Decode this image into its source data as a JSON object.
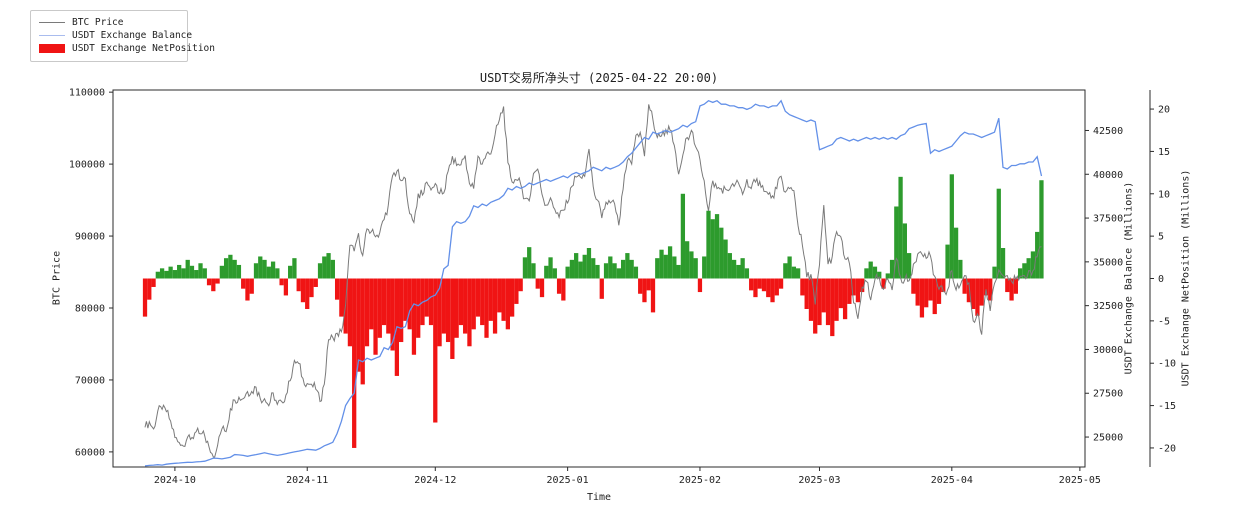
{
  "chart_data": {
    "type": "mixed",
    "title": "USDT交易所净头寸 (2025-04-22 20:00)",
    "colors": {
      "btc_line": "#7a7a7a",
      "balance_line": "#6390e8",
      "netpos_positive": "#2d9b2d",
      "netpos_negative": "#f01414",
      "legend_balance_marker": "#a9bcee",
      "spine": "#2b2b2b",
      "background": "#ffffff"
    },
    "legend": [
      {
        "label": "BTC Price",
        "type": "line",
        "color": "#7a7a7a"
      },
      {
        "label": "USDT Exchange Balance",
        "type": "line",
        "color": "#a9bcee"
      },
      {
        "label": "USDT Exchange NetPosition",
        "type": "patch",
        "color": "#f01414"
      }
    ],
    "axes": {
      "x": {
        "label": "Time",
        "domain_days": [
          -7.5,
          220.2
        ],
        "ticks": [
          {
            "day": 7,
            "label": "2024-10"
          },
          {
            "day": 38,
            "label": "2024-11"
          },
          {
            "day": 68,
            "label": "2024-12"
          },
          {
            "day": 99,
            "label": "2025-01"
          },
          {
            "day": 130,
            "label": "2025-02"
          },
          {
            "day": 158,
            "label": "2025-03"
          },
          {
            "day": 189,
            "label": "2025-04"
          },
          {
            "day": 219,
            "label": "2025-05"
          }
        ]
      },
      "btc": {
        "label": "BTC Price",
        "lim": [
          57900,
          110300
        ],
        "ticks": [
          60000,
          70000,
          80000,
          90000,
          100000,
          110000
        ]
      },
      "balance": {
        "label": "USDT Exchange Balance (Millions)",
        "lim": [
          23290,
          44810
        ],
        "ticks": [
          25000,
          27500,
          30000,
          32500,
          35000,
          37500,
          40000,
          42500
        ]
      },
      "netpos": {
        "label": "USDT Exchange NetPosition (Millions)",
        "lim": [
          -22.25,
          22.25
        ],
        "ticks": [
          -20,
          -15,
          -10,
          -5,
          0,
          5,
          10,
          15,
          20
        ]
      }
    },
    "start_date": "2024-09-24",
    "end_date": "2025-04-22",
    "frequency": "daily",
    "series": [
      {
        "name": "BTC Price",
        "type": "line",
        "axis": "btc",
        "values": [
          63400,
          64200,
          63200,
          65700,
          65900,
          65600,
          64300,
          62000,
          61300,
          60800,
          62100,
          62000,
          62800,
          62500,
          62200,
          60700,
          59300,
          60900,
          63200,
          62800,
          66000,
          67200,
          67600,
          67400,
          68400,
          68400,
          69000,
          67400,
          67400,
          66400,
          68200,
          66600,
          67000,
          67900,
          69900,
          72700,
          72300,
          70200,
          69500,
          69400,
          68700,
          67000,
          69400,
          75600,
          75900,
          76500,
          76700,
          80400,
          88700,
          87900,
          90400,
          87300,
          91000,
          90600,
          89900,
          90500,
          92300,
          94300,
          98400,
          99000,
          97700,
          98000,
          93100,
          91900,
          95900,
          95700,
          97500,
          96400,
          97300,
          95900,
          96000,
          99000,
          101100,
          99800,
          99900,
          101200,
          97300,
          96600,
          101100,
          100000,
          101400,
          101400,
          104100,
          106100,
          108000,
          100200,
          97500,
          97800,
          97200,
          95200,
          94900,
          98700,
          99300,
          95800,
          94300,
          95300,
          93700,
          92600,
          93600,
          94600,
          96900,
          98200,
          98200,
          98300,
          102100,
          96900,
          95000,
          92500,
          94700,
          94600,
          94500,
          91500,
          96500,
          100500,
          100000,
          104000,
          104400,
          101100,
          108300,
          106100,
          103700,
          103900,
          104800,
          104700,
          102600,
          98600,
          101300,
          103700,
          104700,
          102400,
          100600,
          97700,
          93500,
          97700,
          96600,
          96600,
          96500,
          96500,
          96900,
          97400,
          95800,
          97900,
          96600,
          97500,
          97600,
          96200,
          95800,
          95600,
          96600,
          98300,
          96100,
          96600,
          96300,
          91400,
          88700,
          84300,
          84700,
          80500,
          86000,
          94300,
          86100,
          87200,
          90600,
          89900,
          86800,
          86200,
          80700,
          78500,
          82900,
          83700,
          81100,
          84000,
          84300,
          82600,
          84000,
          82500,
          86900,
          84200,
          84000,
          83800,
          86100,
          87500,
          87500,
          86900,
          87200,
          84400,
          82600,
          82300,
          82500,
          85200,
          82500,
          83200,
          84500,
          83500,
          78200,
          79200,
          76300,
          82600,
          79600,
          83400,
          85300,
          84500,
          84500,
          83700,
          84000,
          84400,
          84500,
          85200,
          85200,
          87100,
          88500
        ]
      },
      {
        "name": "USDT Exchange Balance",
        "type": "line",
        "axis": "balance",
        "values": [
          23350,
          23380,
          23400,
          23420,
          23400,
          23450,
          23480,
          23500,
          23520,
          23540,
          23560,
          23550,
          23580,
          23600,
          23620,
          23700,
          23800,
          23780,
          23750,
          23800,
          23850,
          24000,
          23980,
          23950,
          23900,
          23950,
          24000,
          24050,
          24100,
          24050,
          24000,
          23950,
          24000,
          24050,
          24100,
          24150,
          24200,
          24250,
          24300,
          24280,
          24250,
          24350,
          24500,
          24600,
          24700,
          25200,
          25900,
          26800,
          27200,
          27500,
          29400,
          29300,
          29500,
          29400,
          29500,
          29600,
          30100,
          30000,
          30400,
          31300,
          31200,
          31300,
          32200,
          32600,
          32500,
          32700,
          32800,
          33000,
          33100,
          33500,
          34600,
          34800,
          37000,
          37300,
          37200,
          37300,
          37600,
          38200,
          38100,
          38300,
          38200,
          38400,
          38500,
          38600,
          38800,
          39200,
          39100,
          39300,
          39200,
          39300,
          39500,
          39400,
          39500,
          39600,
          39700,
          39600,
          39700,
          39800,
          39900,
          39800,
          40000,
          40100,
          40000,
          40100,
          40200,
          40400,
          40300,
          40200,
          40400,
          40300,
          40400,
          40500,
          40700,
          41000,
          41200,
          41500,
          41800,
          42100,
          42000,
          42400,
          42300,
          42400,
          42500,
          42400,
          42500,
          42600,
          42800,
          42700,
          42900,
          43000,
          43900,
          44000,
          44200,
          44100,
          44200,
          44000,
          44000,
          43900,
          43900,
          43800,
          43800,
          43700,
          43800,
          44000,
          43900,
          43900,
          43800,
          43900,
          43900,
          44200,
          43600,
          43400,
          43300,
          43200,
          43100,
          43000,
          43100,
          43000,
          41400,
          41500,
          41600,
          41700,
          42000,
          42100,
          42000,
          41900,
          42000,
          41900,
          42000,
          42100,
          42000,
          42100,
          42000,
          42100,
          42000,
          42100,
          42000,
          42200,
          42300,
          42600,
          42700,
          42800,
          42850,
          42900,
          41200,
          41400,
          41300,
          41400,
          41500,
          41600,
          41900,
          42200,
          42400,
          42300,
          42300,
          42200,
          42100,
          42200,
          42300,
          42400,
          43200,
          40400,
          40300,
          40500,
          40500,
          40600,
          40600,
          40700,
          40700,
          41000,
          39900
        ]
      },
      {
        "name": "USDT Exchange NetPosition",
        "type": "bar",
        "axis": "netpos",
        "values": [
          -4.5,
          -2.5,
          -1.0,
          0.8,
          1.2,
          0.9,
          1.4,
          1.0,
          1.6,
          1.2,
          2.2,
          1.5,
          1.0,
          1.8,
          1.2,
          -0.8,
          -1.5,
          -0.6,
          1.5,
          2.4,
          2.8,
          2.2,
          1.6,
          -1.2,
          -2.6,
          -1.8,
          1.8,
          2.6,
          2.2,
          1.4,
          2.0,
          1.2,
          -0.8,
          -2.0,
          1.5,
          2.4,
          -1.5,
          -2.8,
          -3.6,
          -2.2,
          -1.0,
          1.8,
          2.6,
          3.0,
          2.2,
          -2.5,
          -4.5,
          -6.5,
          -8.0,
          -20.0,
          -11.0,
          -12.5,
          -8.0,
          -6.0,
          -9.0,
          -7.0,
          -5.5,
          -6.5,
          -8.5,
          -11.5,
          -7.5,
          -5.0,
          -6.0,
          -9.0,
          -7.0,
          -5.5,
          -4.5,
          -5.5,
          -17.0,
          -8.0,
          -6.5,
          -7.5,
          -9.5,
          -7.0,
          -5.5,
          -6.5,
          -8.0,
          -6.0,
          -4.5,
          -5.5,
          -7.0,
          -5.0,
          -6.5,
          -4.0,
          -5.0,
          -6.0,
          -4.5,
          -3.0,
          -1.5,
          2.5,
          3.7,
          1.8,
          -1.2,
          -2.2,
          1.5,
          2.5,
          1.2,
          -1.8,
          -2.6,
          1.4,
          2.2,
          3.0,
          2.0,
          2.8,
          3.6,
          2.4,
          1.6,
          -2.4,
          1.8,
          2.6,
          1.8,
          1.2,
          2.2,
          3.0,
          2.2,
          1.4,
          -1.8,
          -2.8,
          -1.4,
          -4.0,
          2.4,
          3.4,
          2.8,
          3.8,
          2.6,
          1.6,
          10.0,
          4.4,
          3.2,
          2.4,
          -1.6,
          2.6,
          8.0,
          7.0,
          7.6,
          6.0,
          4.6,
          3.0,
          2.2,
          1.6,
          2.4,
          1.2,
          -1.4,
          -2.2,
          -1.2,
          -1.5,
          -2.2,
          -2.8,
          -2.0,
          -1.2,
          1.8,
          2.6,
          1.4,
          1.2,
          -2.0,
          -3.6,
          -5.0,
          -6.5,
          -5.5,
          -4.0,
          -5.5,
          -6.8,
          -5.0,
          -3.5,
          -4.8,
          -3.0,
          -2.0,
          -2.8,
          -1.6,
          1.2,
          2.0,
          1.4,
          0.8,
          -1.2,
          0.6,
          2.2,
          8.5,
          12.0,
          6.5,
          3.0,
          -1.8,
          -3.2,
          -4.6,
          -3.4,
          -2.6,
          -4.2,
          -3.0,
          -1.6,
          4.0,
          12.3,
          6.0,
          2.2,
          -1.8,
          -2.8,
          -3.6,
          -4.4,
          -3.2,
          -2.0,
          -2.6,
          1.4,
          10.6,
          3.6,
          -1.6,
          -2.6,
          -1.8,
          1.2,
          1.8,
          2.4,
          3.2,
          5.5,
          11.6
        ]
      }
    ]
  }
}
